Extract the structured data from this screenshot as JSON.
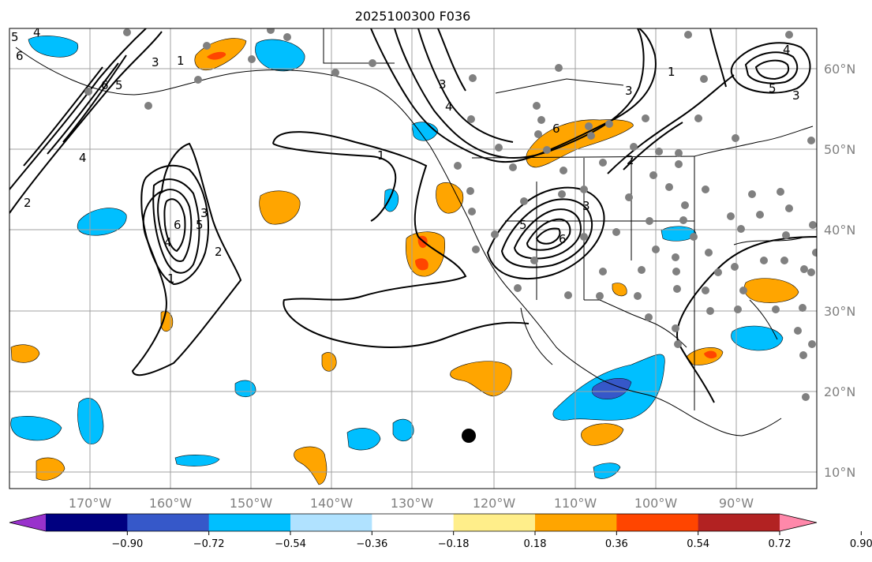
{
  "title": "2025100300 F036",
  "map": {
    "lon_labels": [
      "170°W",
      "160°W",
      "150°W",
      "140°W",
      "130°W",
      "120°W",
      "110°W",
      "100°W",
      "90°W"
    ],
    "lat_labels": [
      "60°N",
      "50°N",
      "40°N",
      "30°N",
      "20°N",
      "10°N"
    ],
    "contour_labels": [
      "1",
      "2",
      "3",
      "4",
      "5",
      "6"
    ]
  },
  "colorbar": {
    "tick_labels": [
      "−0.90",
      "−0.72",
      "−0.54",
      "−0.36",
      "−0.18",
      "0.18",
      "0.36",
      "0.54",
      "0.72",
      "0.90"
    ],
    "colors": [
      "#9932cc",
      "#000080",
      "#3658c9",
      "#00bfff",
      "#b0e2ff",
      "#ffffff",
      "#ffee8a",
      "#ffa500",
      "#ff4500",
      "#b22222",
      "#ff88aa"
    ]
  }
}
